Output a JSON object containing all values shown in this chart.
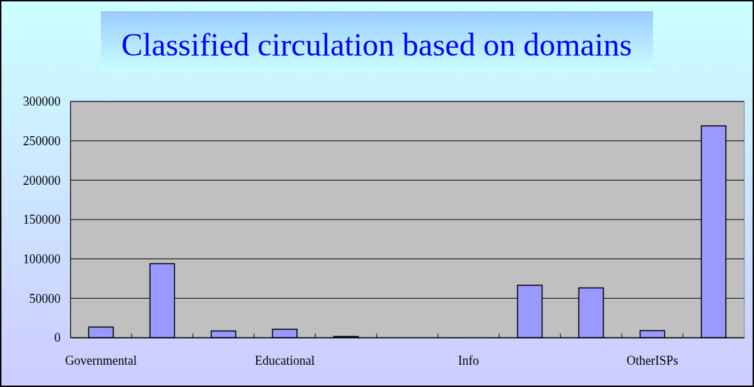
{
  "chart_data": {
    "type": "bar",
    "title": "Classified circulation based on domains",
    "categories": [
      "Governmental",
      null,
      null,
      "Educational",
      null,
      null,
      "Info",
      null,
      null,
      "OtherISPs",
      null
    ],
    "values": [
      13500,
      94000,
      8500,
      10700,
      1500,
      0,
      0,
      66600,
      63200,
      9000,
      269000
    ],
    "color": "#9999ff",
    "ylim": [
      0,
      300000
    ],
    "yticks": [
      0,
      50000,
      100000,
      150000,
      200000,
      250000,
      300000
    ],
    "grid": "y"
  }
}
